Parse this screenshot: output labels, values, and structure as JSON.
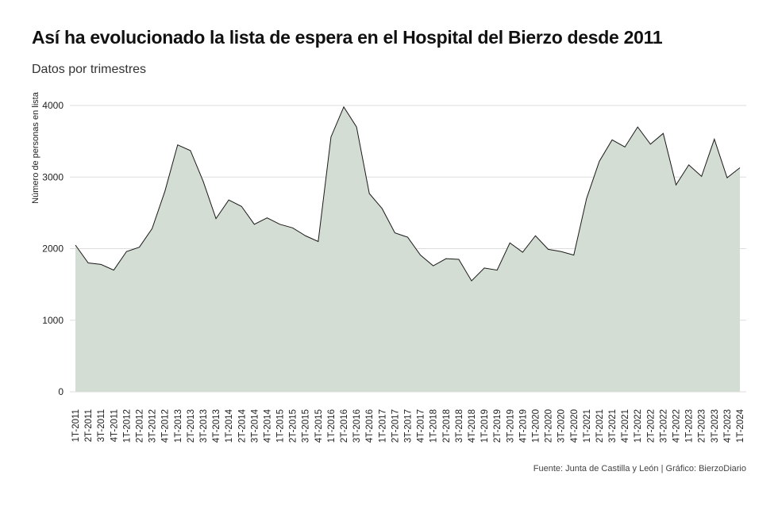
{
  "title": "Así ha evolucionado la lista de espera en el Hospital del Bierzo desde 2011",
  "subtitle": "Datos por trimestres",
  "source": "Fuente: Junta de Castilla y León | Gráfico: BierzoDiario",
  "colors": {
    "area_fill": "#d4ddd3",
    "line": "#1a1a1a",
    "grid": "#dddddd"
  },
  "chart_data": {
    "type": "area",
    "ylabel": "Número de personas en lista",
    "ylim": [
      0,
      4000
    ],
    "yticks": [
      0,
      1000,
      2000,
      3000,
      4000
    ],
    "grid": true,
    "categories": [
      "1T-2011",
      "2T-2011",
      "3T-2011",
      "4T-2011",
      "1T-2012",
      "2T-2012",
      "3T-2012",
      "4T-2012",
      "1T-2013",
      "2T-2013",
      "3T-2013",
      "4T-2013",
      "1T-2014",
      "2T-2014",
      "3T-2014",
      "4T-2014",
      "1T-2015",
      "2T-2015",
      "3T-2015",
      "4T-2015",
      "1T-2016",
      "2T-2016",
      "3T-2016",
      "4T-2016",
      "1T-2017",
      "2T-2017",
      "3T-2017",
      "4T-2017",
      "1T-2018",
      "2T-2018",
      "3T-2018",
      "4T-2018",
      "1T-2019",
      "2T-2019",
      "3T-2019",
      "4T-2019",
      "1T-2020",
      "2T-2020",
      "3T-2020",
      "4T-2020",
      "1T-2021",
      "2T-2021",
      "3T-2021",
      "4T-2021",
      "1T-2022",
      "2T-2022",
      "3T-2022",
      "4T-2022",
      "1T-2023",
      "2T-2023",
      "3T-2023",
      "4T-2023",
      "1T-2024"
    ],
    "values": [
      2050,
      1800,
      1780,
      1700,
      1960,
      2020,
      2280,
      2800,
      3450,
      3370,
      2940,
      2420,
      2680,
      2590,
      2340,
      2430,
      2340,
      2290,
      2180,
      2100,
      3560,
      3980,
      3700,
      2770,
      2560,
      2220,
      2160,
      1910,
      1760,
      1860,
      1850,
      1550,
      1730,
      1700,
      2080,
      1950,
      2180,
      1990,
      1960,
      1910,
      2700,
      3220,
      3520,
      3420,
      3700,
      3460,
      3610,
      2890,
      3170,
      3010,
      3530,
      2990,
      3130
    ]
  }
}
